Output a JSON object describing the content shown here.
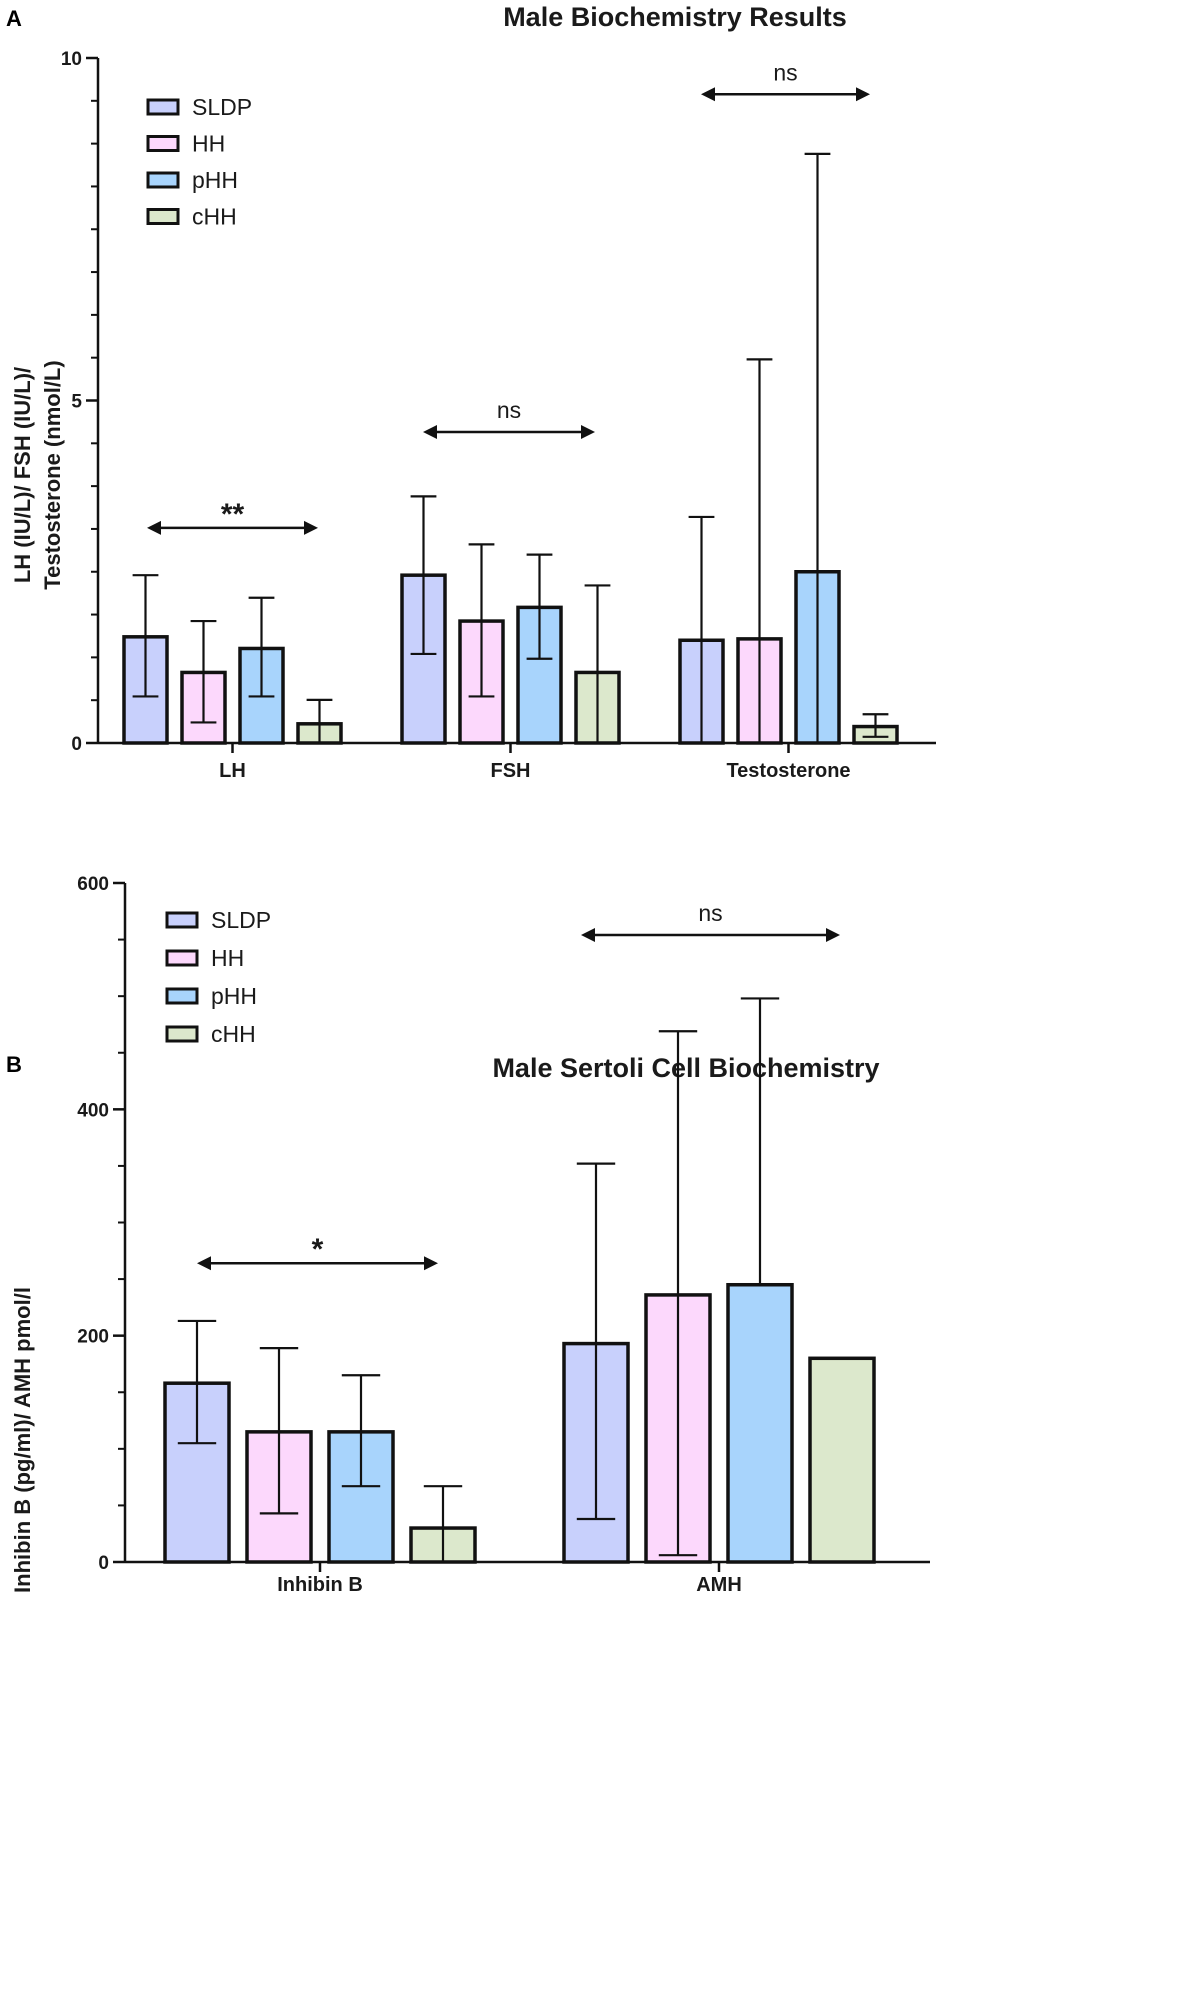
{
  "colors": {
    "SLDP": "#c8d0fc",
    "HH": "#fcd8fc",
    "pHH": "#a8d4fc",
    "cHH": "#dce8cc",
    "stroke": "#111111"
  },
  "series_names": [
    "SLDP",
    "HH",
    "pHH",
    "cHH"
  ],
  "chart_data": [
    {
      "panel": "A",
      "type": "bar",
      "title": "Male Biochemistry Results",
      "ylabel": [
        "LH (IU/L)/ FSH (IU/L)/",
        "Testosterone (nmol/L)"
      ],
      "xlabel": "",
      "ylim": [
        0,
        10
      ],
      "yticks": [
        0,
        5,
        10
      ],
      "categories": [
        "LH",
        "FSH",
        "Testosterone"
      ],
      "legend_position": "top-left",
      "series": [
        {
          "name": "SLDP",
          "values": [
            1.55,
            2.45,
            1.5
          ],
          "err_low": [
            0.68,
            1.3,
            0
          ],
          "err_high": [
            2.45,
            3.6,
            3.3
          ]
        },
        {
          "name": "HH",
          "values": [
            1.03,
            1.78,
            1.52
          ],
          "err_low": [
            0.3,
            0.68,
            0
          ],
          "err_high": [
            1.78,
            2.9,
            5.6
          ]
        },
        {
          "name": "pHH",
          "values": [
            1.38,
            1.98,
            2.5
          ],
          "err_low": [
            0.68,
            1.23,
            0
          ],
          "err_high": [
            2.12,
            2.75,
            8.6
          ]
        },
        {
          "name": "cHH",
          "values": [
            0.28,
            1.03,
            0.24
          ],
          "err_low": [
            0,
            0,
            0.09
          ],
          "err_high": [
            0.63,
            2.3,
            0.42
          ]
        }
      ],
      "significance": [
        {
          "category": "LH",
          "label": "**",
          "y": 3.14
        },
        {
          "category": "FSH",
          "label": "ns",
          "y": 4.54
        },
        {
          "category": "Testosterone",
          "label": "ns",
          "y": 9.47
        }
      ]
    },
    {
      "panel": "B",
      "type": "bar",
      "title": "Male Sertoli Cell Biochemistry",
      "ylabel": [
        "Inhibin B (pg/ml)/ AMH pmol/l"
      ],
      "xlabel": "",
      "ylim": [
        0,
        600
      ],
      "yticks": [
        0,
        200,
        400,
        600
      ],
      "categories": [
        "Inhibin B",
        "AMH"
      ],
      "legend_position": "top-left",
      "series": [
        {
          "name": "SLDP",
          "values": [
            158,
            193
          ],
          "err_low": [
            105,
            38
          ],
          "err_high": [
            213,
            352
          ]
        },
        {
          "name": "HH",
          "values": [
            115,
            236
          ],
          "err_low": [
            43,
            6
          ],
          "err_high": [
            189,
            469
          ]
        },
        {
          "name": "pHH",
          "values": [
            115,
            245
          ],
          "err_low": [
            67,
            null
          ],
          "err_high": [
            165,
            498
          ]
        },
        {
          "name": "cHH",
          "values": [
            30,
            180
          ],
          "err_low": [
            0,
            null
          ],
          "err_high": [
            67,
            null
          ]
        }
      ],
      "significance": [
        {
          "category": "Inhibin B",
          "label": "*",
          "y": 264
        },
        {
          "category": "AMH",
          "label": "ns",
          "y": 554
        }
      ]
    }
  ]
}
